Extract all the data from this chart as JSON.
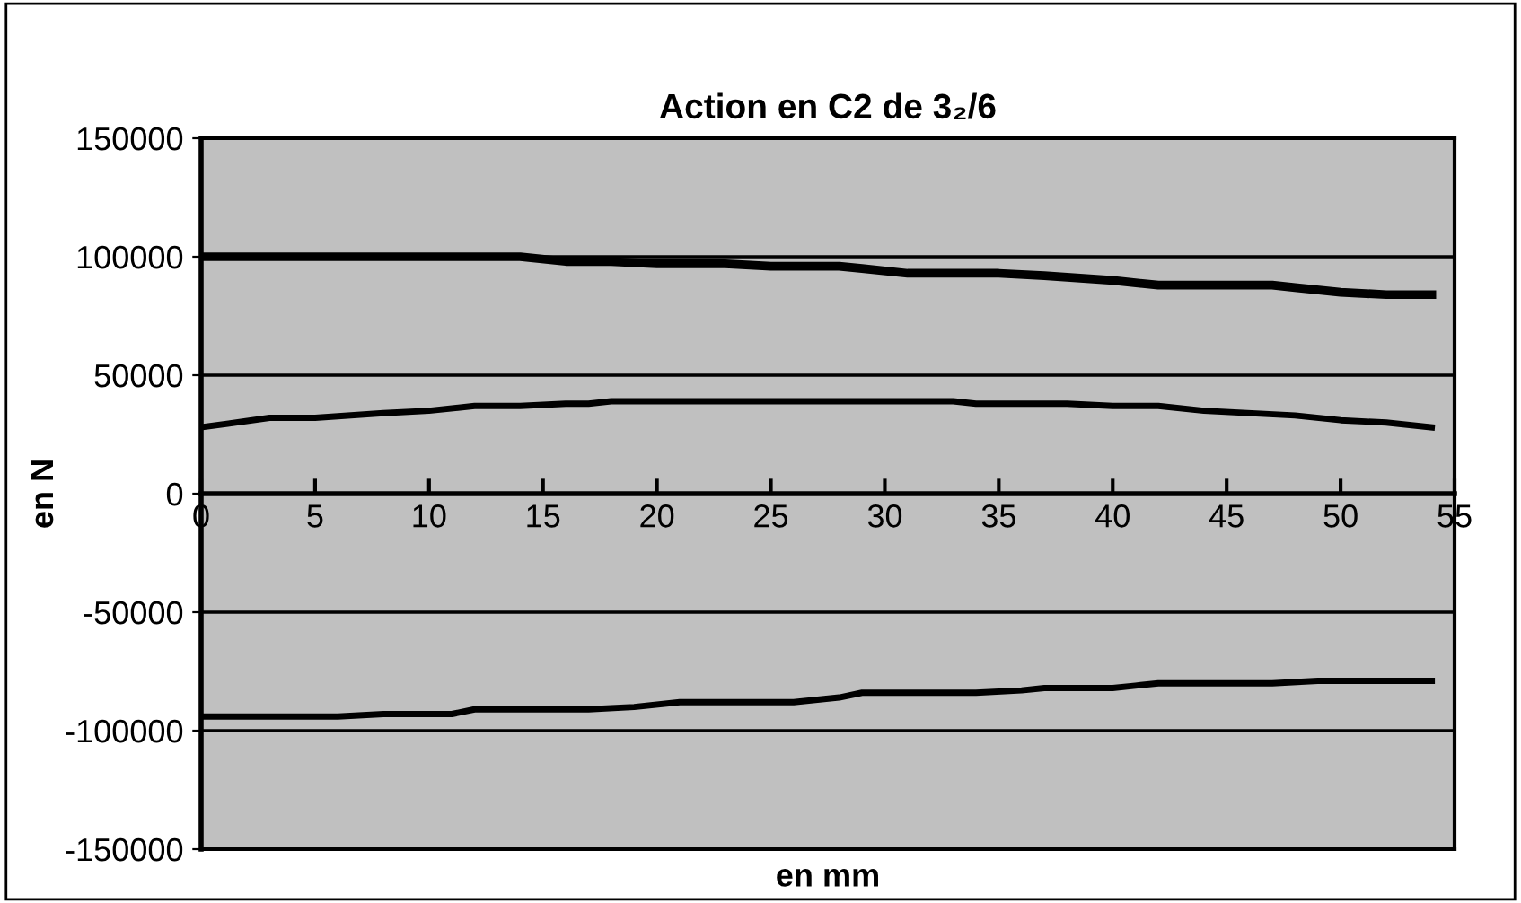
{
  "chart_data": {
    "type": "line",
    "title": "Action en C2 de 3₂/6",
    "xlabel": "en mm",
    "ylabel": "en N",
    "xlim": [
      0,
      55
    ],
    "xticks": [
      0,
      5,
      10,
      15,
      20,
      25,
      30,
      35,
      40,
      45,
      50,
      55
    ],
    "ylim": [
      -150000,
      150000
    ],
    "yticks": [
      -150000,
      -100000,
      -50000,
      0,
      50000,
      100000,
      150000
    ],
    "grid": "y",
    "marker": "none",
    "line_style": "solid",
    "series": [
      {
        "color": "#000000",
        "x": [
          0,
          14,
          16,
          18,
          20,
          23,
          25,
          28,
          29,
          31,
          35,
          37,
          40,
          42,
          47,
          48,
          50,
          52,
          54
        ],
        "values": [
          100000,
          100000,
          98000,
          98000,
          97000,
          97000,
          96000,
          96000,
          95000,
          93000,
          93000,
          92000,
          90000,
          88000,
          88000,
          87000,
          85000,
          84000,
          84000
        ]
      },
      {
        "color": "#000000",
        "x": [
          0,
          3,
          5,
          8,
          10,
          12,
          14,
          16,
          17,
          18,
          33,
          34,
          38,
          40,
          42,
          44,
          48,
          50,
          52,
          54
        ],
        "values": [
          28000,
          32000,
          32000,
          34000,
          35000,
          37000,
          37000,
          38000,
          38000,
          39000,
          39000,
          38000,
          38000,
          37000,
          37000,
          35000,
          33000,
          31000,
          30000,
          28000
        ]
      },
      {
        "color": "#000000",
        "x": [
          0,
          6,
          8,
          11,
          12,
          17,
          19,
          21,
          26,
          28,
          29,
          34,
          36,
          37,
          40,
          41,
          42,
          47,
          49,
          54
        ],
        "values": [
          -94000,
          -94000,
          -93000,
          -93000,
          -91000,
          -91000,
          -90000,
          -88000,
          -88000,
          -86000,
          -84000,
          -84000,
          -83000,
          -82000,
          -82000,
          -81000,
          -80000,
          -80000,
          -79000,
          -79000
        ]
      }
    ]
  }
}
